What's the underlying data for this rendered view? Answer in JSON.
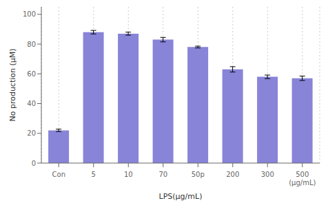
{
  "chart_data": {
    "type": "bar",
    "categories": [
      "Con",
      "5",
      "10",
      "70",
      "50p",
      "200",
      "300",
      "500\n(μg/mL)"
    ],
    "values": [
      22,
      88,
      87,
      83,
      78,
      63,
      58,
      57
    ],
    "errors": [
      0.8,
      1.2,
      1.0,
      1.5,
      0.6,
      1.8,
      1.2,
      1.5
    ],
    "xlabel": "LPS(μg/mL)",
    "ylabel": "No production (μM)",
    "ylim": [
      0,
      105
    ],
    "yticks": [
      0,
      20,
      40,
      60,
      80,
      100
    ],
    "color": "#8884d8",
    "grid": true
  }
}
